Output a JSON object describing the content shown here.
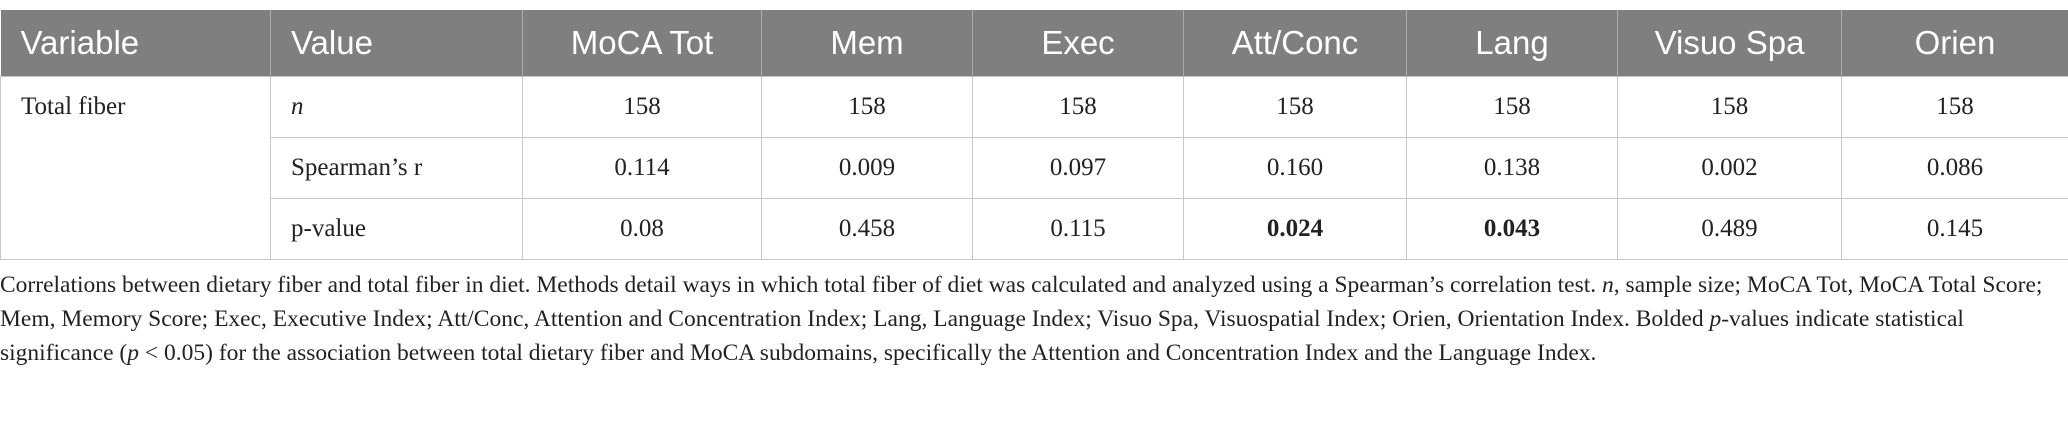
{
  "table": {
    "header": [
      "Variable",
      "Value",
      "MoCA Tot",
      "Mem",
      "Exec",
      "Att/Conc",
      "Lang",
      "Visuo Spa",
      "Orien"
    ],
    "groups": [
      {
        "variable": "Total fiber",
        "rows": [
          {
            "value": {
              "text": "n",
              "italic": true
            },
            "cells": [
              {
                "text": "158"
              },
              {
                "text": "158"
              },
              {
                "text": "158"
              },
              {
                "text": "158"
              },
              {
                "text": "158"
              },
              {
                "text": "158"
              },
              {
                "text": "158"
              }
            ]
          },
          {
            "value": {
              "text": "Spearman’s r"
            },
            "cells": [
              {
                "text": "0.114"
              },
              {
                "text": "0.009"
              },
              {
                "text": "0.097"
              },
              {
                "text": "0.160"
              },
              {
                "text": "0.138"
              },
              {
                "text": "0.002"
              },
              {
                "text": "0.086"
              }
            ]
          },
          {
            "value": {
              "text": "p-value"
            },
            "cells": [
              {
                "text": "0.08"
              },
              {
                "text": "0.458"
              },
              {
                "text": "0.115"
              },
              {
                "text": "0.024",
                "bold": true
              },
              {
                "text": "0.043",
                "bold": true
              },
              {
                "text": "0.489"
              },
              {
                "text": "0.145"
              }
            ]
          }
        ]
      }
    ]
  },
  "caption": [
    {
      "text": "Correlations between dietary fiber and total fiber in diet. Methods detail ways in which total fiber of diet was calculated and analyzed using a Spearman’s correlation test. "
    },
    {
      "text": "n",
      "italic": true
    },
    {
      "text": ", sample size; MoCA Tot, MoCA Total Score; Mem, Memory Score; Exec, Executive Index; Att/Conc, Attention and Concentration Index; Lang, Language Index; Visuo Spa, Visuospatial Index; Orien, Orientation Index. Bolded "
    },
    {
      "text": "p",
      "italic": true
    },
    {
      "text": "-values indicate statistical significance ("
    },
    {
      "text": "p",
      "italic": true
    },
    {
      "text": " < 0.05) for the association between total dietary fiber and MoCA subdomains, specifically the Attention and Concentration Index and the Language Index."
    }
  ]
}
